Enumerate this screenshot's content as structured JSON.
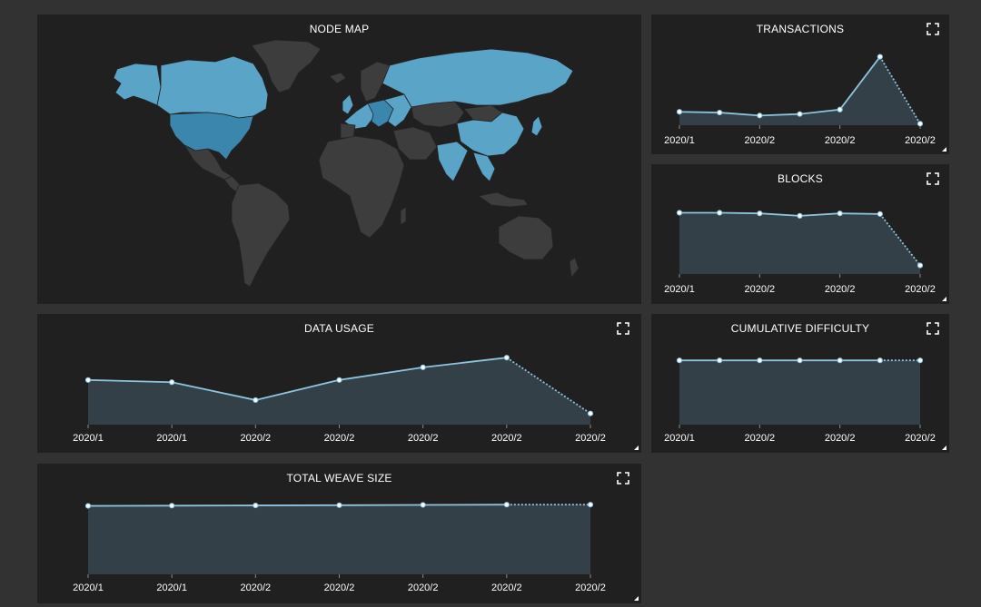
{
  "colors": {
    "page_bg": "#323232",
    "panel_bg": "#202020",
    "line": "#8ec4de",
    "area": "#334048",
    "point_fill": "#ffffff",
    "land": "#3d3d3d",
    "land_border": "#232323",
    "node_light": "#5aa4c8",
    "node_dark": "#3a86ad"
  },
  "node_map": {
    "title": "NODE MAP"
  },
  "panels": {
    "transactions": {
      "title": "TRANSACTIONS",
      "expand_icon": "expand-icon"
    },
    "blocks": {
      "title": "BLOCKS",
      "expand_icon": "expand-icon"
    },
    "data_usage": {
      "title": "DATA USAGE",
      "expand_icon": "expand-icon"
    },
    "cumulative_difficulty": {
      "title": "CUMULATIVE DIFFICULTY",
      "expand_icon": "expand-icon"
    },
    "total_weave_size": {
      "title": "TOTAL WEAVE SIZE",
      "expand_icon": "expand-icon"
    }
  },
  "chart_data": [
    {
      "id": "transactions",
      "type": "area",
      "title": "TRANSACTIONS",
      "tick_labels": [
        "2020/1",
        "2020/2",
        "2020/2",
        "2020/2"
      ],
      "x": [
        0,
        1,
        2,
        3,
        4,
        5,
        6
      ],
      "values": [
        18,
        17,
        13,
        15,
        21,
        92,
        2
      ],
      "ylim": [
        0,
        100
      ],
      "last_segment_dotted": true
    },
    {
      "id": "blocks",
      "type": "area",
      "title": "BLOCKS",
      "tick_labels": [
        "2020/1",
        "2020/2",
        "2020/2",
        "2020/2"
      ],
      "x": [
        0,
        1,
        2,
        3,
        4,
        5,
        6
      ],
      "values": [
        100,
        100,
        99,
        95,
        99,
        98,
        14
      ],
      "ylim": [
        0,
        120
      ],
      "last_segment_dotted": true
    },
    {
      "id": "data_usage",
      "type": "area",
      "title": "DATA USAGE",
      "tick_labels": [
        "2020/1",
        "2020/1",
        "2020/2",
        "2020/2",
        "2020/2",
        "2020/2",
        "2020/2"
      ],
      "x": [
        0,
        1,
        2,
        3,
        4,
        5,
        6
      ],
      "values": [
        60,
        57,
        33,
        60,
        77,
        90,
        15
      ],
      "ylim": [
        0,
        100
      ],
      "last_segment_dotted": true
    },
    {
      "id": "cumulative_difficulty",
      "type": "area",
      "title": "CUMULATIVE DIFFICULTY",
      "tick_labels": [
        "2020/1",
        "2020/2",
        "2020/2",
        "2020/2"
      ],
      "x": [
        0,
        1,
        2,
        3,
        4,
        5,
        6
      ],
      "values": [
        95,
        95,
        95,
        95,
        95,
        95,
        95
      ],
      "ylim": [
        0,
        110
      ],
      "last_segment_dotted": true
    },
    {
      "id": "total_weave_size",
      "type": "area",
      "title": "TOTAL WEAVE SIZE",
      "tick_labels": [
        "2020/1",
        "2020/1",
        "2020/2",
        "2020/2",
        "2020/2",
        "2020/2",
        "2020/2"
      ],
      "x": [
        0,
        1,
        2,
        3,
        4,
        5,
        6
      ],
      "values": [
        92,
        92.3,
        92.6,
        92.9,
        93.3,
        93.7,
        93.7
      ],
      "ylim": [
        0,
        100
      ],
      "last_segment_dotted": true
    }
  ]
}
